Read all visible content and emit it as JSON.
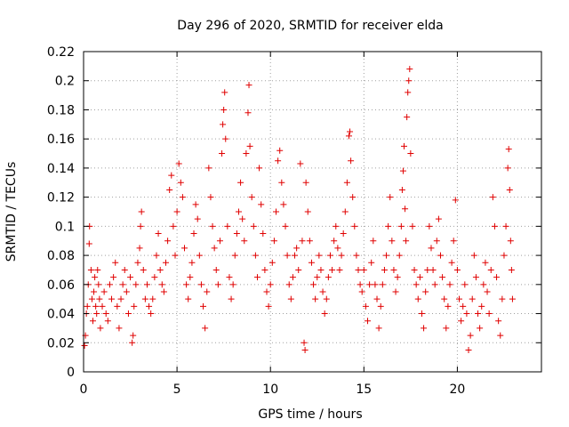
{
  "chart_data": {
    "type": "scatter",
    "title": "Day 296 of 2020, SRMTID for receiver elda",
    "xlabel": "GPS time / hours",
    "ylabel": "SRMTID / TECUs",
    "xlim": [
      0,
      24.5
    ],
    "ylim": [
      0,
      0.22
    ],
    "x_ticks": [
      0,
      5,
      10,
      15,
      20
    ],
    "x_tick_labels": [
      "0",
      "5",
      "10",
      "15",
      "20"
    ],
    "y_ticks": [
      0,
      0.02,
      0.04,
      0.06,
      0.08,
      0.1,
      0.12,
      0.14,
      0.16,
      0.18,
      0.2,
      0.22
    ],
    "y_tick_labels": [
      "0",
      "0.02",
      "0.04",
      "0.06",
      "0.08",
      "0.1",
      "0.12",
      "0.14",
      "0.16",
      "0.18",
      "0.2",
      "0.22"
    ],
    "grid": true,
    "marker": "+",
    "color": "#e00000",
    "series": [
      {
        "name": "SRMTID",
        "points": [
          [
            0.05,
            0.018
          ],
          [
            0.1,
            0.025
          ],
          [
            0.15,
            0.04
          ],
          [
            0.2,
            0.045
          ],
          [
            0.25,
            0.06
          ],
          [
            0.3,
            0.088
          ],
          [
            0.32,
            0.1
          ],
          [
            0.4,
            0.07
          ],
          [
            0.45,
            0.05
          ],
          [
            0.5,
            0.035
          ],
          [
            0.55,
            0.055
          ],
          [
            0.6,
            0.065
          ],
          [
            0.65,
            0.045
          ],
          [
            0.7,
            0.04
          ],
          [
            0.75,
            0.07
          ],
          [
            0.8,
            0.06
          ],
          [
            0.85,
            0.05
          ],
          [
            0.9,
            0.03
          ],
          [
            1.0,
            0.045
          ],
          [
            1.1,
            0.055
          ],
          [
            1.2,
            0.04
          ],
          [
            1.3,
            0.035
          ],
          [
            1.4,
            0.06
          ],
          [
            1.5,
            0.05
          ],
          [
            1.6,
            0.065
          ],
          [
            1.7,
            0.075
          ],
          [
            1.8,
            0.045
          ],
          [
            1.9,
            0.03
          ],
          [
            2.0,
            0.05
          ],
          [
            2.1,
            0.06
          ],
          [
            2.2,
            0.07
          ],
          [
            2.3,
            0.055
          ],
          [
            2.4,
            0.04
          ],
          [
            2.5,
            0.065
          ],
          [
            2.6,
            0.02
          ],
          [
            2.65,
            0.025
          ],
          [
            2.7,
            0.045
          ],
          [
            2.8,
            0.06
          ],
          [
            2.9,
            0.075
          ],
          [
            3.0,
            0.085
          ],
          [
            3.05,
            0.1
          ],
          [
            3.1,
            0.11
          ],
          [
            3.2,
            0.07
          ],
          [
            3.3,
            0.05
          ],
          [
            3.4,
            0.06
          ],
          [
            3.5,
            0.045
          ],
          [
            3.6,
            0.04
          ],
          [
            3.7,
            0.05
          ],
          [
            3.8,
            0.065
          ],
          [
            3.9,
            0.08
          ],
          [
            4.0,
            0.095
          ],
          [
            4.1,
            0.07
          ],
          [
            4.2,
            0.06
          ],
          [
            4.3,
            0.055
          ],
          [
            4.4,
            0.075
          ],
          [
            4.5,
            0.09
          ],
          [
            4.6,
            0.125
          ],
          [
            4.7,
            0.135
          ],
          [
            4.8,
            0.1
          ],
          [
            4.9,
            0.08
          ],
          [
            5.0,
            0.11
          ],
          [
            5.1,
            0.143
          ],
          [
            5.2,
            0.13
          ],
          [
            5.3,
            0.12
          ],
          [
            5.4,
            0.085
          ],
          [
            5.5,
            0.06
          ],
          [
            5.6,
            0.05
          ],
          [
            5.7,
            0.065
          ],
          [
            5.8,
            0.075
          ],
          [
            5.9,
            0.095
          ],
          [
            6.0,
            0.115
          ],
          [
            6.1,
            0.105
          ],
          [
            6.2,
            0.08
          ],
          [
            6.3,
            0.06
          ],
          [
            6.4,
            0.045
          ],
          [
            6.5,
            0.03
          ],
          [
            6.6,
            0.055
          ],
          [
            6.7,
            0.14
          ],
          [
            6.8,
            0.12
          ],
          [
            6.9,
            0.1
          ],
          [
            7.0,
            0.085
          ],
          [
            7.1,
            0.07
          ],
          [
            7.2,
            0.06
          ],
          [
            7.3,
            0.09
          ],
          [
            7.4,
            0.15
          ],
          [
            7.45,
            0.17
          ],
          [
            7.5,
            0.18
          ],
          [
            7.55,
            0.192
          ],
          [
            7.6,
            0.16
          ],
          [
            7.7,
            0.1
          ],
          [
            7.8,
            0.065
          ],
          [
            7.9,
            0.05
          ],
          [
            8.0,
            0.06
          ],
          [
            8.1,
            0.08
          ],
          [
            8.2,
            0.095
          ],
          [
            8.3,
            0.11
          ],
          [
            8.4,
            0.13
          ],
          [
            8.5,
            0.105
          ],
          [
            8.6,
            0.09
          ],
          [
            8.7,
            0.15
          ],
          [
            8.8,
            0.178
          ],
          [
            8.85,
            0.197
          ],
          [
            8.9,
            0.155
          ],
          [
            9.0,
            0.12
          ],
          [
            9.1,
            0.1
          ],
          [
            9.2,
            0.08
          ],
          [
            9.3,
            0.065
          ],
          [
            9.4,
            0.14
          ],
          [
            9.5,
            0.115
          ],
          [
            9.6,
            0.095
          ],
          [
            9.7,
            0.07
          ],
          [
            9.8,
            0.055
          ],
          [
            9.9,
            0.045
          ],
          [
            10.0,
            0.06
          ],
          [
            10.1,
            0.075
          ],
          [
            10.2,
            0.09
          ],
          [
            10.3,
            0.11
          ],
          [
            10.4,
            0.145
          ],
          [
            10.5,
            0.152
          ],
          [
            10.6,
            0.13
          ],
          [
            10.7,
            0.115
          ],
          [
            10.8,
            0.1
          ],
          [
            10.9,
            0.08
          ],
          [
            11.0,
            0.06
          ],
          [
            11.1,
            0.05
          ],
          [
            11.2,
            0.065
          ],
          [
            11.3,
            0.08
          ],
          [
            11.4,
            0.085
          ],
          [
            11.5,
            0.07
          ],
          [
            11.6,
            0.143
          ],
          [
            11.7,
            0.09
          ],
          [
            11.8,
            0.02
          ],
          [
            11.85,
            0.015
          ],
          [
            11.9,
            0.13
          ],
          [
            12.0,
            0.11
          ],
          [
            12.1,
            0.09
          ],
          [
            12.2,
            0.075
          ],
          [
            12.3,
            0.06
          ],
          [
            12.4,
            0.05
          ],
          [
            12.5,
            0.065
          ],
          [
            12.6,
            0.08
          ],
          [
            12.7,
            0.07
          ],
          [
            12.8,
            0.055
          ],
          [
            12.9,
            0.04
          ],
          [
            13.0,
            0.05
          ],
          [
            13.1,
            0.065
          ],
          [
            13.2,
            0.08
          ],
          [
            13.3,
            0.07
          ],
          [
            13.4,
            0.09
          ],
          [
            13.5,
            0.1
          ],
          [
            13.6,
            0.085
          ],
          [
            13.7,
            0.07
          ],
          [
            13.8,
            0.08
          ],
          [
            13.9,
            0.095
          ],
          [
            14.0,
            0.11
          ],
          [
            14.1,
            0.13
          ],
          [
            14.2,
            0.162
          ],
          [
            14.25,
            0.165
          ],
          [
            14.3,
            0.145
          ],
          [
            14.4,
            0.12
          ],
          [
            14.5,
            0.1
          ],
          [
            14.6,
            0.08
          ],
          [
            14.7,
            0.07
          ],
          [
            14.8,
            0.06
          ],
          [
            14.9,
            0.055
          ],
          [
            15.0,
            0.07
          ],
          [
            15.1,
            0.045
          ],
          [
            15.2,
            0.035
          ],
          [
            15.3,
            0.06
          ],
          [
            15.4,
            0.075
          ],
          [
            15.5,
            0.09
          ],
          [
            15.6,
            0.06
          ],
          [
            15.7,
            0.05
          ],
          [
            15.8,
            0.03
          ],
          [
            15.9,
            0.045
          ],
          [
            16.0,
            0.06
          ],
          [
            16.1,
            0.07
          ],
          [
            16.2,
            0.08
          ],
          [
            16.3,
            0.1
          ],
          [
            16.4,
            0.12
          ],
          [
            16.5,
            0.09
          ],
          [
            16.6,
            0.07
          ],
          [
            16.7,
            0.055
          ],
          [
            16.8,
            0.065
          ],
          [
            16.9,
            0.08
          ],
          [
            17.0,
            0.1
          ],
          [
            17.05,
            0.125
          ],
          [
            17.1,
            0.138
          ],
          [
            17.15,
            0.155
          ],
          [
            17.2,
            0.112
          ],
          [
            17.25,
            0.09
          ],
          [
            17.3,
            0.175
          ],
          [
            17.35,
            0.192
          ],
          [
            17.4,
            0.2
          ],
          [
            17.45,
            0.208
          ],
          [
            17.5,
            0.15
          ],
          [
            17.6,
            0.1
          ],
          [
            17.7,
            0.07
          ],
          [
            17.8,
            0.06
          ],
          [
            17.9,
            0.05
          ],
          [
            18.0,
            0.065
          ],
          [
            18.1,
            0.04
          ],
          [
            18.2,
            0.03
          ],
          [
            18.3,
            0.055
          ],
          [
            18.4,
            0.07
          ],
          [
            18.5,
            0.1
          ],
          [
            18.6,
            0.085
          ],
          [
            18.7,
            0.07
          ],
          [
            18.8,
            0.06
          ],
          [
            18.9,
            0.09
          ],
          [
            19.0,
            0.105
          ],
          [
            19.1,
            0.08
          ],
          [
            19.2,
            0.065
          ],
          [
            19.3,
            0.05
          ],
          [
            19.4,
            0.03
          ],
          [
            19.5,
            0.045
          ],
          [
            19.6,
            0.06
          ],
          [
            19.7,
            0.075
          ],
          [
            19.8,
            0.09
          ],
          [
            19.9,
            0.118
          ],
          [
            20.0,
            0.07
          ],
          [
            20.1,
            0.05
          ],
          [
            20.2,
            0.035
          ],
          [
            20.3,
            0.045
          ],
          [
            20.4,
            0.06
          ],
          [
            20.5,
            0.04
          ],
          [
            20.6,
            0.015
          ],
          [
            20.7,
            0.025
          ],
          [
            20.8,
            0.05
          ],
          [
            20.9,
            0.08
          ],
          [
            21.0,
            0.065
          ],
          [
            21.1,
            0.04
          ],
          [
            21.2,
            0.03
          ],
          [
            21.3,
            0.045
          ],
          [
            21.4,
            0.06
          ],
          [
            21.5,
            0.075
          ],
          [
            21.6,
            0.055
          ],
          [
            21.7,
            0.04
          ],
          [
            21.8,
            0.07
          ],
          [
            21.9,
            0.12
          ],
          [
            22.0,
            0.1
          ],
          [
            22.1,
            0.065
          ],
          [
            22.2,
            0.035
          ],
          [
            22.3,
            0.025
          ],
          [
            22.4,
            0.05
          ],
          [
            22.5,
            0.08
          ],
          [
            22.6,
            0.1
          ],
          [
            22.7,
            0.14
          ],
          [
            22.75,
            0.153
          ],
          [
            22.8,
            0.125
          ],
          [
            22.85,
            0.09
          ],
          [
            22.9,
            0.07
          ],
          [
            22.95,
            0.05
          ]
        ]
      }
    ]
  }
}
